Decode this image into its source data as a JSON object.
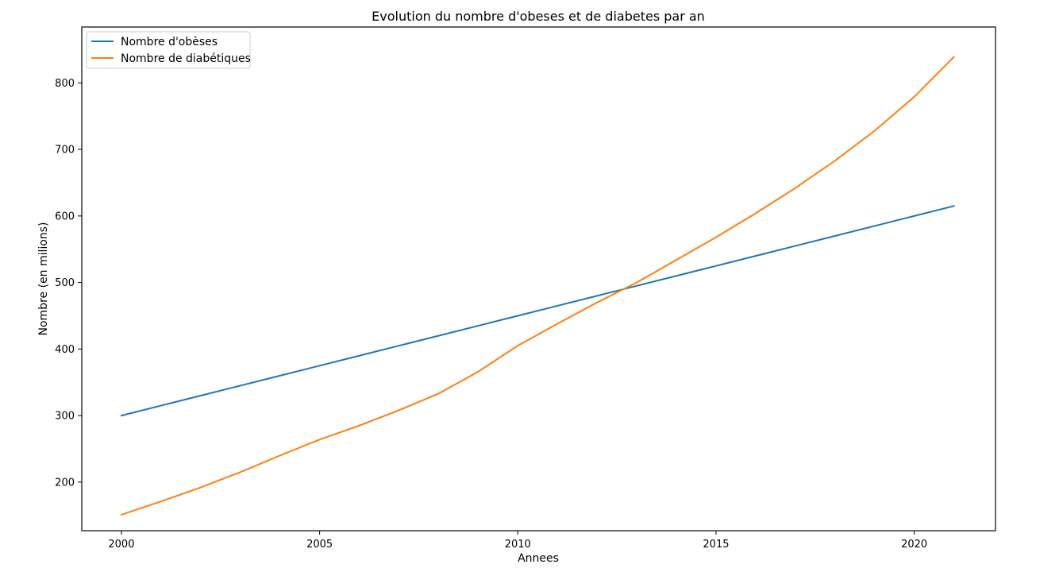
{
  "chart_data": {
    "type": "line",
    "title": "Evolution du nombre d'obeses et de diabetes par an",
    "xlabel": "Annees",
    "ylabel": "Nombre (en milions)",
    "xlim": [
      1999,
      2022.05
    ],
    "ylim": [
      127,
      884
    ],
    "xticks": [
      2000,
      2005,
      2010,
      2015,
      2020
    ],
    "yticks": [
      200,
      300,
      400,
      500,
      600,
      700,
      800
    ],
    "grid": false,
    "legend_position": "top-left",
    "x": [
      2000,
      2001,
      2002,
      2003,
      2004,
      2005,
      2006,
      2007,
      2008,
      2009,
      2010,
      2011,
      2012,
      2013,
      2014,
      2015,
      2016,
      2017,
      2018,
      2019,
      2020,
      2021
    ],
    "series": [
      {
        "name": "Nombre d'obèses",
        "color": "#1f77b4",
        "values": [
          300,
          315,
          330,
          345,
          360,
          375,
          390,
          405,
          420,
          435,
          450,
          465,
          480,
          495,
          510,
          525,
          540,
          555,
          570,
          585,
          600,
          615
        ]
      },
      {
        "name": "Nombre de diabétiques",
        "color": "#ff7f0e",
        "values": [
          151,
          171,
          192,
          215,
          240,
          264,
          285,
          308,
          333,
          366,
          405,
          438,
          470,
          500,
          534,
          568,
          604,
          642,
          683,
          728,
          779,
          839
        ]
      }
    ]
  }
}
